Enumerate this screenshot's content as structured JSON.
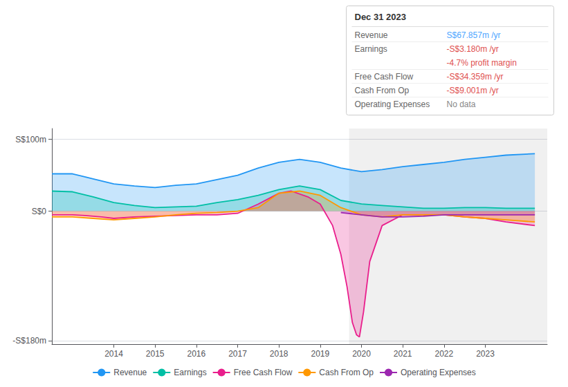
{
  "chart_data": {
    "type": "line",
    "title": "Dec 31 2023",
    "annotations": [
      {
        "label": "Revenue",
        "text": "S$67.857m /yr",
        "color": "#4da6ff"
      },
      {
        "label": "Earnings",
        "text": "-S$3.180m /yr",
        "color": "#e05050"
      },
      {
        "text": "-4.7% profit margin",
        "color": "#e05050"
      },
      {
        "label": "Free Cash Flow",
        "text": "-S$34.359m /yr",
        "color": "#e05050"
      },
      {
        "label": "Cash From Op",
        "text": "-S$9.001m /yr",
        "color": "#e05050"
      },
      {
        "label": "Operating Expenses",
        "text": "No data",
        "color": "#888888"
      }
    ],
    "xlim": [
      2012.5,
      2024.5
    ],
    "xticks": [
      2014,
      2015,
      2016,
      2017,
      2018,
      2019,
      2020,
      2021,
      2022,
      2023
    ],
    "ylim": [
      -185,
      115
    ],
    "yticks": [
      {
        "value": -180,
        "label": "-S$180m"
      },
      {
        "value": 0,
        "label": "S$0"
      },
      {
        "value": 100,
        "label": "S$100m"
      }
    ],
    "grid": true,
    "legend": "bottom",
    "shaded_from": 2019.7,
    "series": [
      {
        "name": "Revenue",
        "color": "#2196f3",
        "x": [
          2012.5,
          2013.0,
          2013.5,
          2014.0,
          2014.5,
          2015.0,
          2015.5,
          2016.0,
          2016.5,
          2017.0,
          2017.5,
          2018.0,
          2018.5,
          2019.0,
          2019.5,
          2020.0,
          2020.5,
          2021.0,
          2021.5,
          2022.0,
          2022.5,
          2023.0,
          2023.5,
          2024.2
        ],
        "values": [
          52,
          52,
          45,
          38,
          35,
          33,
          36,
          38,
          44,
          50,
          60,
          68,
          72,
          68,
          60,
          55,
          58,
          62,
          65,
          68,
          72,
          75,
          78,
          80
        ]
      },
      {
        "name": "Earnings",
        "color": "#00bfa5",
        "x": [
          2012.5,
          2013.0,
          2013.5,
          2014.0,
          2014.5,
          2015.0,
          2015.5,
          2016.0,
          2016.5,
          2017.0,
          2017.5,
          2018.0,
          2018.5,
          2019.0,
          2019.5,
          2020.0,
          2020.5,
          2021.0,
          2021.5,
          2022.0,
          2022.5,
          2023.0,
          2023.5,
          2024.2
        ],
        "values": [
          28,
          27,
          20,
          12,
          8,
          5,
          6,
          7,
          12,
          16,
          22,
          30,
          35,
          30,
          15,
          10,
          8,
          6,
          4,
          4,
          5,
          5,
          4,
          4
        ]
      },
      {
        "name": "Free Cash Flow",
        "color": "#e91e8c",
        "x": [
          2012.5,
          2013.0,
          2013.3,
          2013.7,
          2014.0,
          2014.5,
          2015.0,
          2015.5,
          2016.0,
          2016.5,
          2017.0,
          2017.5,
          2018.0,
          2018.3,
          2018.7,
          2019.0,
          2019.3,
          2019.5,
          2019.65,
          2019.78,
          2019.88,
          2019.95,
          2020.05,
          2020.2,
          2020.5,
          2021.0,
          2021.5,
          2022.0,
          2022.5,
          2023.0,
          2023.5,
          2024.2
        ],
        "values": [
          -5,
          -5,
          -6,
          -8,
          -10,
          -8,
          -7,
          -6,
          -5,
          -5,
          -3,
          10,
          25,
          28,
          20,
          10,
          -20,
          -60,
          -105,
          -155,
          -172,
          -175,
          -140,
          -70,
          -20,
          -5,
          -5,
          -5,
          -8,
          -10,
          -15,
          -20
        ]
      },
      {
        "name": "Cash From Op",
        "color": "#ff9800",
        "x": [
          2012.5,
          2013.0,
          2013.5,
          2014.0,
          2014.5,
          2015.0,
          2015.5,
          2016.0,
          2016.5,
          2017.0,
          2017.5,
          2018.0,
          2018.5,
          2019.0,
          2019.5,
          2020.0,
          2020.5,
          2021.0,
          2021.5,
          2022.0,
          2022.5,
          2023.0,
          2023.5,
          2024.2
        ],
        "values": [
          -8,
          -8,
          -10,
          -12,
          -10,
          -8,
          -5,
          -3,
          -2,
          0,
          5,
          25,
          28,
          22,
          5,
          -5,
          -8,
          -5,
          -5,
          -5,
          -8,
          -10,
          -12,
          -15
        ]
      },
      {
        "name": "Operating Expenses",
        "color": "#9c27b0",
        "x": [
          2019.5,
          2020.0,
          2020.5,
          2021.0,
          2021.5,
          2022.0,
          2022.5,
          2023.0,
          2023.5,
          2024.2
        ],
        "values": [
          -2,
          -5,
          -8,
          -8,
          -7,
          -5,
          -5,
          -5,
          -5,
          -5
        ]
      }
    ]
  }
}
